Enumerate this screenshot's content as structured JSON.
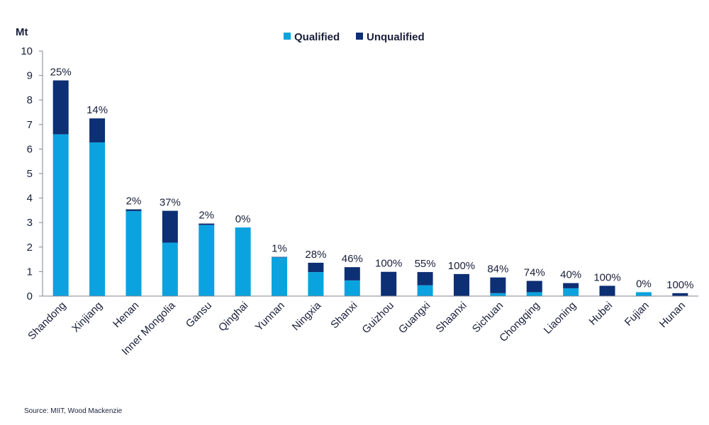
{
  "chart_data": {
    "type": "bar",
    "stacked": true,
    "unit_label": "Mt",
    "ylim": [
      0,
      10
    ],
    "yticks": [
      0,
      1,
      2,
      3,
      4,
      5,
      6,
      7,
      8,
      9,
      10
    ],
    "categories": [
      "Shandong",
      "Xinjiang",
      "Henan",
      "Inner Mongolia",
      "Gansu",
      "Qinghai",
      "Yunnan",
      "Ningxia",
      "Shanxi",
      "Guizhou",
      "Guangxi",
      "Shaanxi",
      "Sichuan",
      "Chongqing",
      "Liaoning",
      "Hubei",
      "Fujian",
      "Hunan"
    ],
    "series": [
      {
        "name": "Qualified",
        "color": "#0aa3e0",
        "values": [
          6.6,
          6.27,
          3.47,
          2.18,
          2.9,
          2.8,
          1.58,
          0.98,
          0.64,
          0.0,
          0.44,
          0.0,
          0.12,
          0.16,
          0.32,
          0.0,
          0.16,
          0.0
        ]
      },
      {
        "name": "Unqualified",
        "color": "#0d2f73",
        "values": [
          2.2,
          0.98,
          0.07,
          1.3,
          0.06,
          0.0,
          0.02,
          0.38,
          0.54,
          0.99,
          0.54,
          0.9,
          0.64,
          0.46,
          0.21,
          0.42,
          0.0,
          0.12
        ]
      }
    ],
    "data_labels": [
      "25%",
      "14%",
      "2%",
      "37%",
      "2%",
      "0%",
      "1%",
      "28%",
      "46%",
      "100%",
      "55%",
      "100%",
      "84%",
      "74%",
      "40%",
      "100%",
      "0%",
      "100%"
    ],
    "legend": {
      "placement": "top-center",
      "entries": [
        "Qualified",
        "Unqualified"
      ]
    }
  },
  "source": "Source: MIIT, Wood Mackenzie"
}
